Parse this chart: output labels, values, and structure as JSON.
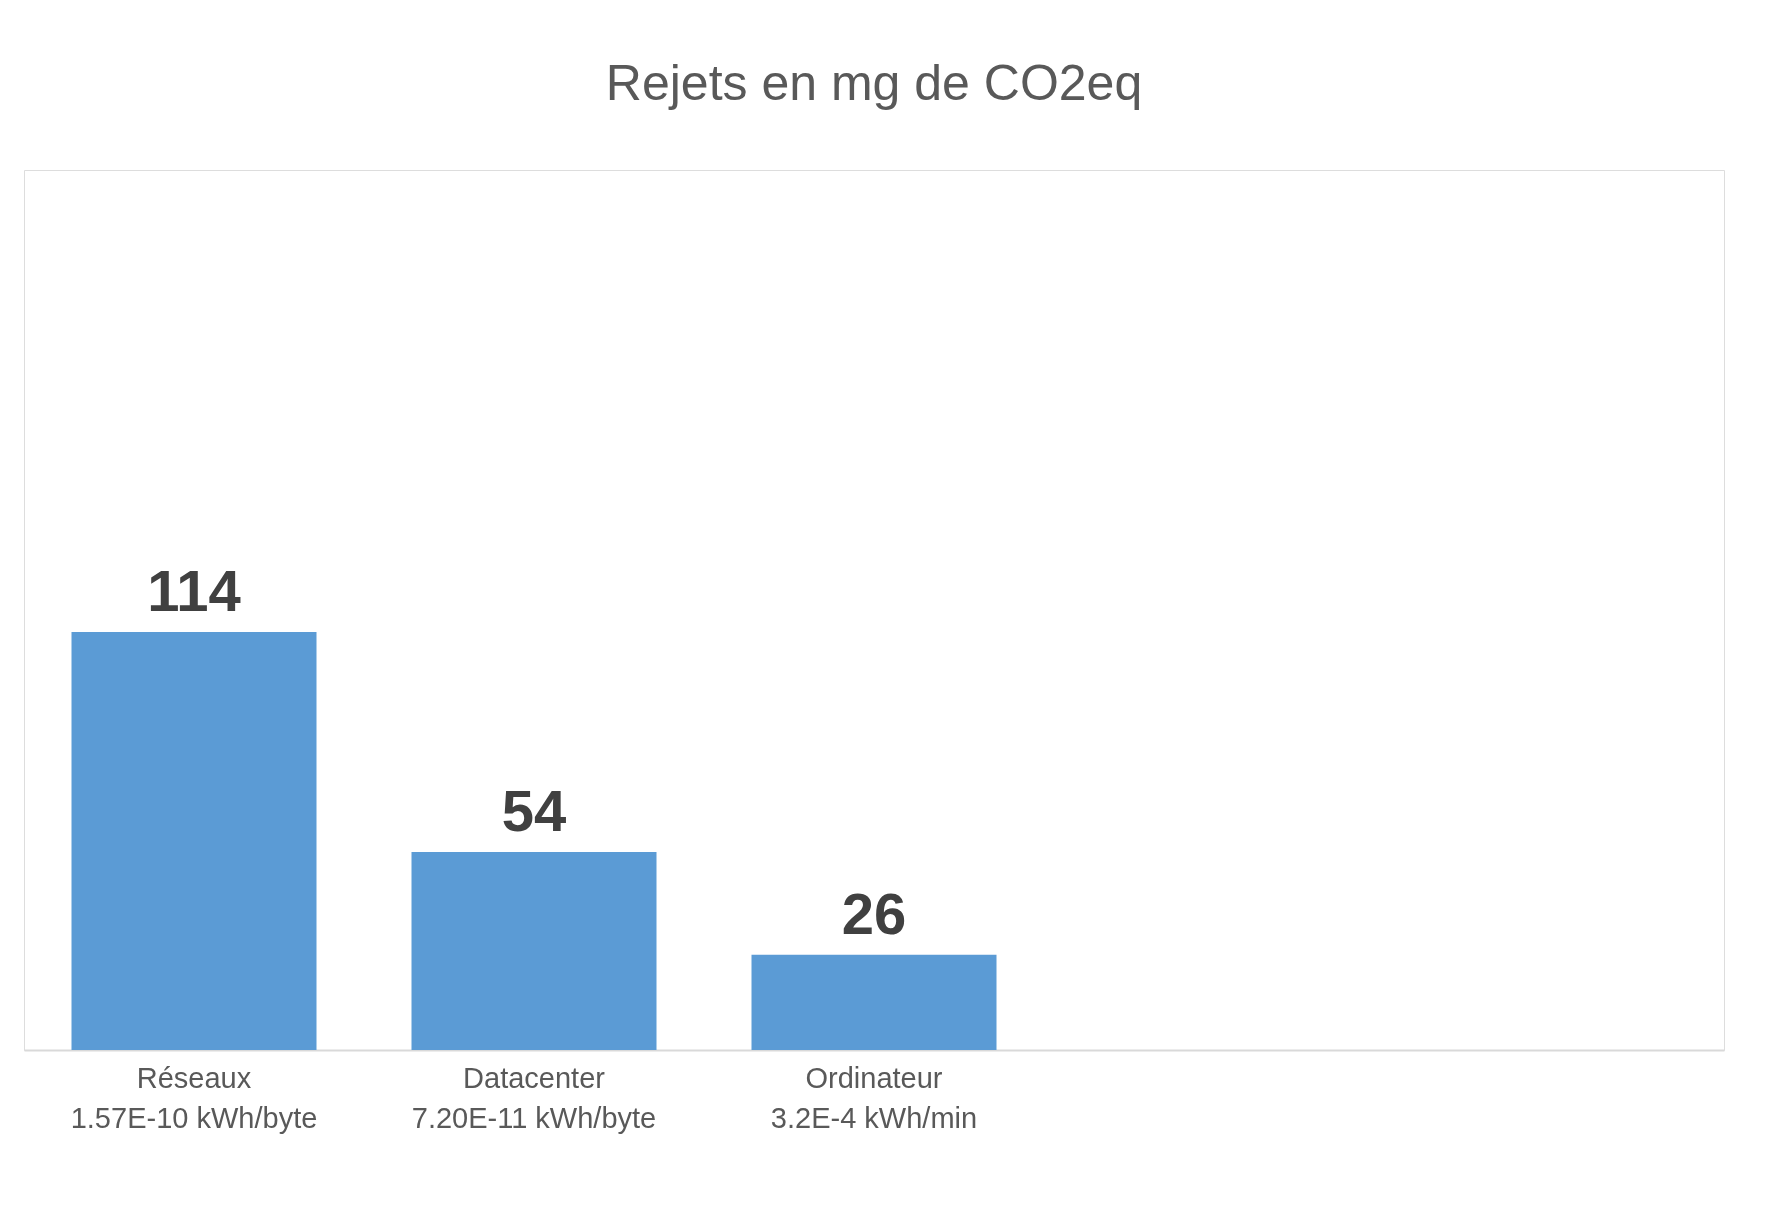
{
  "chart_data": {
    "type": "bar",
    "title": "Rejets en mg de CO2eq",
    "categories": [
      "Réseaux\n1.57E-10 kWh/byte",
      "Datacenter\n7.20E-11 kWh/byte",
      "Ordinateur\n3.2E-4 kWh/min",
      null,
      null
    ],
    "values": [
      114,
      54,
      26,
      null,
      null
    ],
    "color": "#5b9bd5",
    "ylim": [
      0,
      240
    ],
    "data_labels": true,
    "grid": false,
    "tick_labels": "x"
  }
}
